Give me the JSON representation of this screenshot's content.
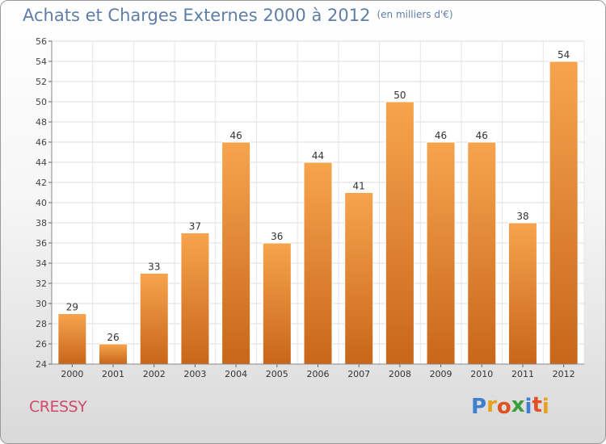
{
  "header": {
    "title": "Achats et Charges Externes 2000 à 2012",
    "unit": "(en milliers d'€)"
  },
  "footer": {
    "commune": "CRESSY",
    "logo_letters": [
      "P",
      "r",
      "o",
      "x",
      "i",
      "t",
      "i"
    ],
    "logo_colors": [
      "#3f7fd0",
      "#e8a020",
      "#e05020",
      "#3c9d3c",
      "#3f7fd0",
      "#e05020",
      "#e8a020"
    ]
  },
  "chart_data": {
    "type": "bar",
    "categories": [
      "2000",
      "2001",
      "2002",
      "2003",
      "2004",
      "2005",
      "2006",
      "2007",
      "2008",
      "2009",
      "2010",
      "2011",
      "2012"
    ],
    "values": [
      29,
      26,
      33,
      37,
      46,
      36,
      44,
      41,
      50,
      46,
      46,
      38,
      54
    ],
    "title": "Achats et Charges Externes 2000 à 2012",
    "ylim": [
      24,
      56
    ],
    "yticks": [
      24,
      26,
      28,
      30,
      32,
      34,
      36,
      38,
      40,
      42,
      44,
      46,
      48,
      50,
      52,
      54,
      56
    ],
    "grid": true,
    "bar_color_top": "#f7a44e",
    "bar_color_bottom": "#c8661a"
  }
}
